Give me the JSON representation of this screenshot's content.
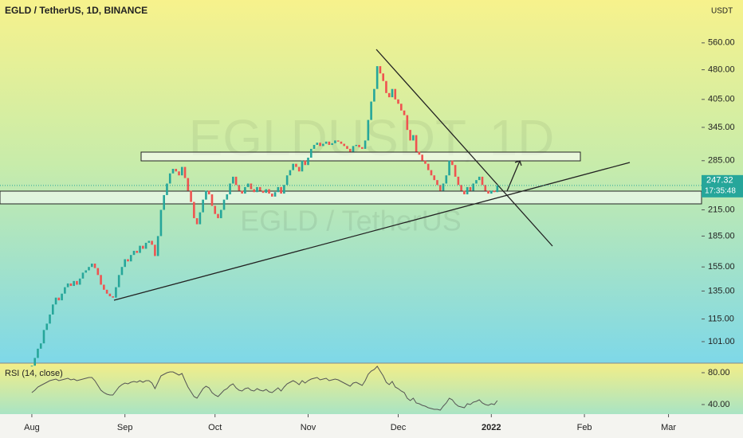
{
  "chart_data": {
    "type": "candlestick",
    "title": "EGLD / TetherUS, 1D, BINANCE",
    "quote_unit": "USDT",
    "watermark": [
      "EGLDUSDT, 1D",
      "EGLD / TetherUS"
    ],
    "countdown": "17:35:48",
    "up_color": "#26a69a",
    "down_color": "#ef5350",
    "log_scale": true,
    "close": [
      88,
      92,
      97,
      100,
      108,
      112,
      118,
      125,
      130,
      128,
      133,
      138,
      141,
      139,
      143,
      140,
      145,
      150,
      152,
      155,
      158,
      154,
      148,
      140,
      136,
      133,
      131,
      130,
      138,
      148,
      155,
      162,
      160,
      166,
      170,
      168,
      175,
      172,
      178,
      180,
      176,
      165,
      185,
      215,
      234,
      250,
      265,
      272,
      268,
      262,
      275,
      258,
      240,
      225,
      205,
      198,
      212,
      228,
      240,
      235,
      220,
      210,
      205,
      215,
      228,
      235,
      250,
      260,
      248,
      240,
      236,
      245,
      250,
      242,
      238,
      245,
      240,
      237,
      242,
      236,
      232,
      238,
      245,
      236,
      248,
      262,
      270,
      280,
      275,
      268,
      285,
      278,
      290,
      305,
      312,
      316,
      310,
      314,
      318,
      312,
      315,
      320,
      318,
      314,
      310,
      305,
      300,
      310,
      312,
      308,
      305,
      320,
      360,
      400,
      430,
      490,
      470,
      450,
      420,
      410,
      430,
      405,
      395,
      380,
      370,
      340,
      320,
      330,
      300,
      295,
      285,
      280,
      270,
      262,
      255,
      248,
      240,
      250,
      262,
      285,
      278,
      260,
      248,
      240,
      235,
      245,
      240,
      250,
      255,
      260,
      248,
      240,
      236,
      240,
      238,
      247.32
    ],
    "xlim": [
      -10.6,
      223
    ],
    "xticks": [
      {
        "value": 0,
        "label": "Aug"
      },
      {
        "value": 31,
        "label": "Sep"
      },
      {
        "value": 61,
        "label": "Oct"
      },
      {
        "value": 92,
        "label": "Nov"
      },
      {
        "value": 122,
        "label": "Dec"
      },
      {
        "value": 153,
        "label": "2022"
      },
      {
        "value": 184,
        "label": "Feb"
      },
      {
        "value": 212,
        "label": "Mar"
      }
    ],
    "ylim": [
      89.7,
      716
    ],
    "yticks": [
      {
        "value": 560,
        "label": "560.00"
      },
      {
        "value": 480,
        "label": "480.00"
      },
      {
        "value": 405,
        "label": "405.00"
      },
      {
        "value": 345,
        "label": "345.00"
      },
      {
        "value": 285,
        "label": "285.00"
      },
      {
        "value": 215,
        "label": "215.00"
      },
      {
        "value": 185,
        "label": "185.00"
      },
      {
        "value": 155,
        "label": "155.00"
      },
      {
        "value": 135,
        "label": "135.00"
      },
      {
        "value": 115,
        "label": "115.00"
      },
      {
        "value": 101,
        "label": "101.00"
      }
    ],
    "rsi": {
      "title": "RSI (14, close)",
      "color": "#555555",
      "ylim": [
        28,
        90
      ],
      "yticks": [
        {
          "value": 80,
          "label": "80.00"
        },
        {
          "value": 40,
          "label": "40.00"
        }
      ],
      "values": [
        55,
        58,
        62,
        64,
        66,
        68,
        70,
        71,
        72,
        70,
        71,
        72,
        73,
        71,
        72,
        70,
        71,
        72,
        73,
        74,
        74,
        70,
        64,
        58,
        55,
        53,
        52,
        52,
        57,
        62,
        65,
        67,
        66,
        68,
        69,
        68,
        70,
        68,
        70,
        70,
        67,
        60,
        68,
        76,
        78,
        80,
        81,
        81,
        79,
        77,
        79,
        70,
        62,
        56,
        50,
        48,
        54,
        60,
        63,
        61,
        55,
        52,
        50,
        54,
        58,
        60,
        64,
        66,
        61,
        58,
        57,
        60,
        61,
        58,
        57,
        60,
        58,
        57,
        59,
        56,
        55,
        58,
        61,
        57,
        62,
        66,
        68,
        70,
        68,
        65,
        70,
        67,
        70,
        72,
        73,
        74,
        71,
        72,
        73,
        70,
        71,
        72,
        71,
        69,
        67,
        65,
        63,
        67,
        68,
        66,
        64,
        70,
        78,
        82,
        84,
        88,
        82,
        76,
        68,
        65,
        69,
        62,
        60,
        57,
        55,
        48,
        45,
        48,
        42,
        41,
        39,
        38,
        36,
        35,
        34,
        34,
        33,
        38,
        42,
        48,
        46,
        41,
        38,
        37,
        36,
        41,
        40,
        43,
        44,
        46,
        42,
        40,
        39,
        41,
        40,
        45
      ]
    }
  }
}
